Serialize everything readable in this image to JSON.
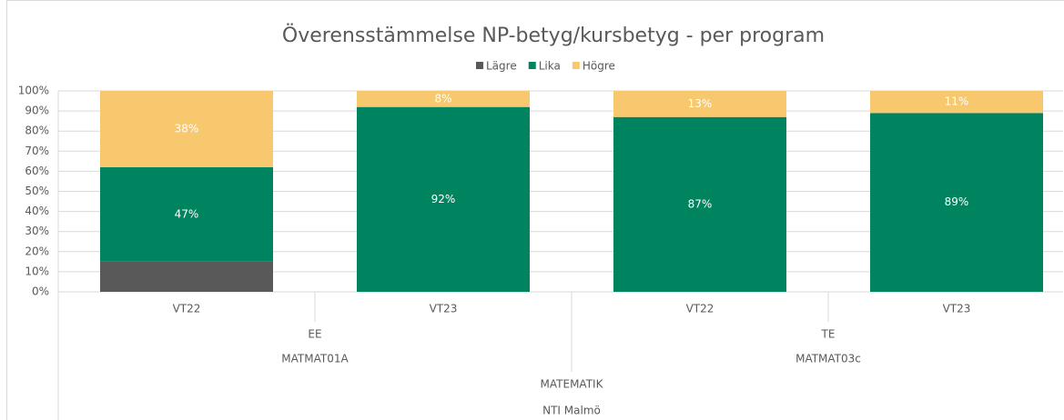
{
  "chart_data": {
    "type": "stacked_bar",
    "title": "Överensstämmelse NP-betyg/kursbetyg - per program",
    "category_levels": [
      [
        "VT22",
        "VT23",
        "VT22",
        "VT23"
      ],
      [
        "EE",
        "TE"
      ],
      [
        "MATMAT01A",
        "MATMAT03c"
      ],
      [
        "MATEMATIK"
      ],
      [
        "NTI Malmö"
      ]
    ],
    "series": [
      {
        "name": "Lägre",
        "color": "#595959",
        "values": [
          15,
          0,
          0,
          0
        ],
        "data_labels": false
      },
      {
        "name": "Lika",
        "color": "#00845f",
        "values": [
          47,
          92,
          87,
          89
        ],
        "value_labels": [
          "47%",
          "92%",
          "87%",
          "89%"
        ],
        "data_labels": true
      },
      {
        "name": "Högre",
        "color": "#f8c86f",
        "values": [
          38,
          8,
          13,
          11
        ],
        "value_labels": [
          "38%",
          "8%",
          "13%",
          "11%"
        ],
        "data_labels": true
      }
    ],
    "ylim": [
      0,
      100
    ],
    "yticks": [
      {
        "value": 0,
        "label": "0%"
      },
      {
        "value": 10,
        "label": "10%"
      },
      {
        "value": 20,
        "label": "20%"
      },
      {
        "value": 30,
        "label": "30%"
      },
      {
        "value": 40,
        "label": "40%"
      },
      {
        "value": 50,
        "label": "50%"
      },
      {
        "value": 60,
        "label": "60%"
      },
      {
        "value": 70,
        "label": "70%"
      },
      {
        "value": 80,
        "label": "80%"
      },
      {
        "value": 90,
        "label": "90%"
      },
      {
        "value": 100,
        "label": "100%"
      }
    ],
    "grid": true,
    "legend": "top"
  }
}
